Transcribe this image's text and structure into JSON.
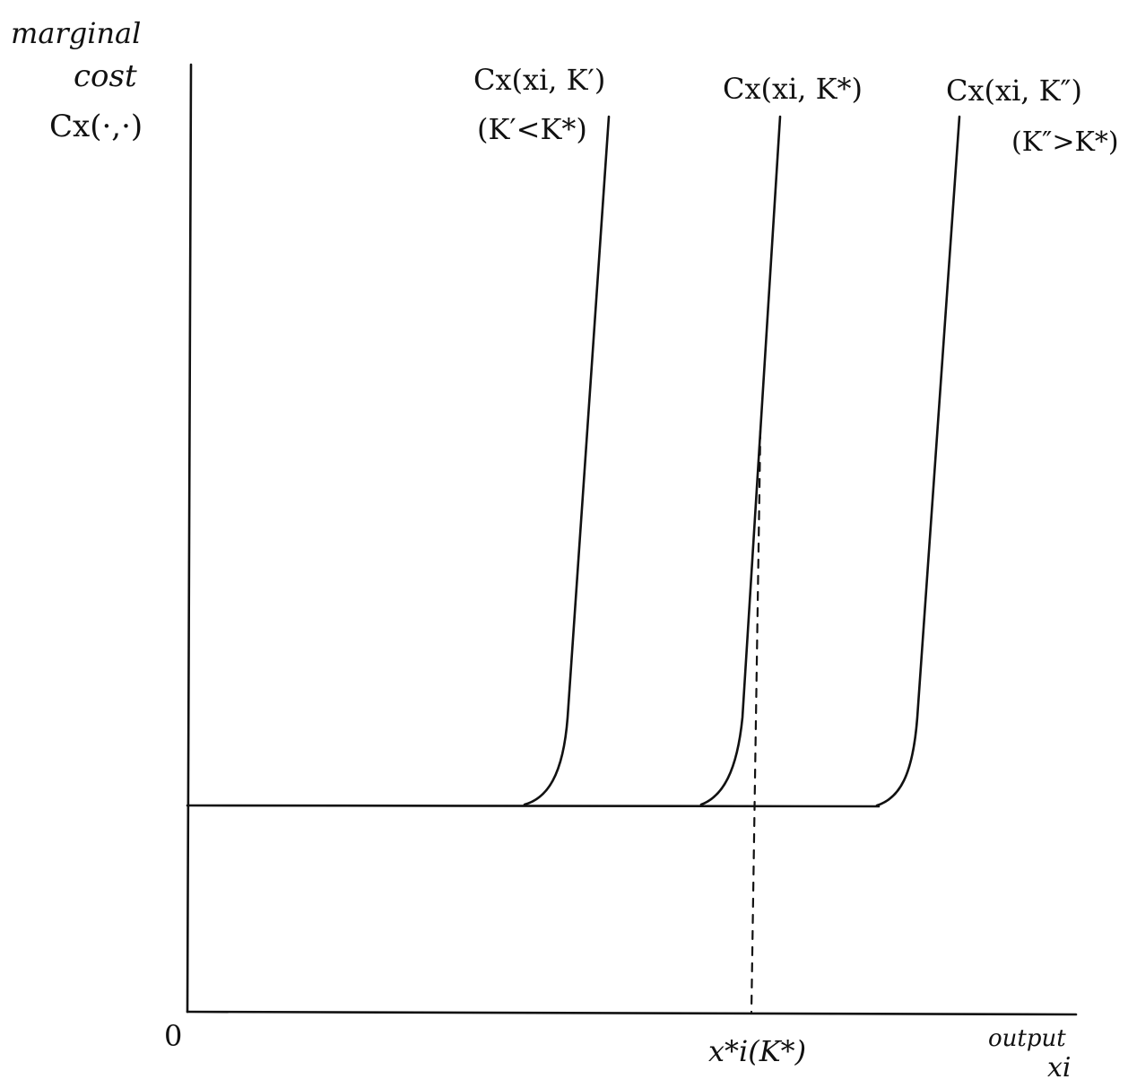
{
  "axes": {
    "y_label_line1": "marginal",
    "y_label_line2": "cost",
    "y_label_line3": "Cx(·,·)",
    "origin_label": "0",
    "x_label_line1": "output",
    "x_label_line2": "xi",
    "x_marker_label": "x*i(K*)"
  },
  "curves": [
    {
      "name": "short-run marginal cost, small capital",
      "label": "Cx(xi, K′)",
      "condition": "(K′<K*)"
    },
    {
      "name": "short-run marginal cost, optimal capital",
      "label": "Cx(xi, K*)",
      "condition": ""
    },
    {
      "name": "short-run marginal cost, large capital",
      "label": "Cx(xi, K″)",
      "condition": "(K″>K*)"
    }
  ],
  "colors": {
    "ink": "#111111",
    "background": "#ffffff"
  }
}
